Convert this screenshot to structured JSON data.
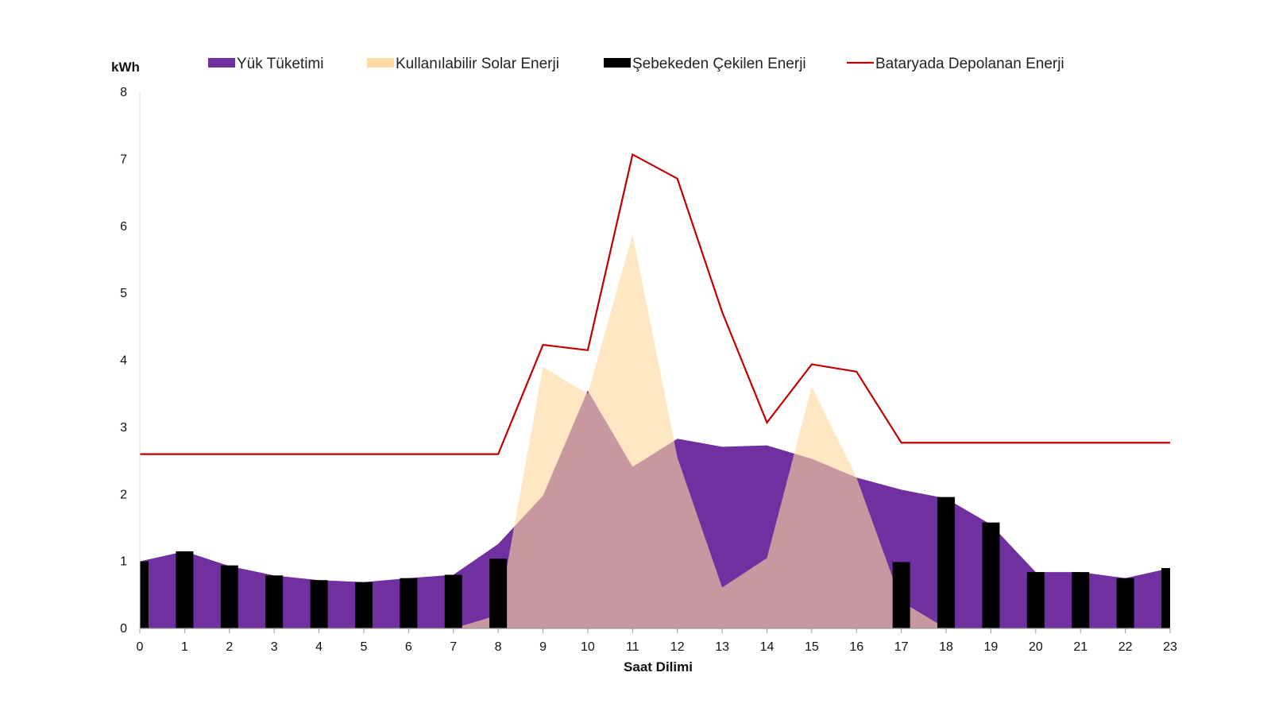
{
  "chart_data": {
    "type": "area",
    "ylabel": "kWh",
    "xlabel": "Saat Dilimi",
    "ylim": [
      0,
      8
    ],
    "yticks": [
      0,
      1,
      2,
      3,
      4,
      5,
      6,
      7,
      8
    ],
    "x": [
      0,
      1,
      2,
      3,
      4,
      5,
      6,
      7,
      8,
      9,
      10,
      11,
      12,
      13,
      14,
      15,
      16,
      17,
      18,
      19,
      20,
      21,
      22,
      23
    ],
    "legend_position": "top",
    "grid": false,
    "series": [
      {
        "name": "Yük Tüketimi",
        "type": "area",
        "color": "#7030a0",
        "values": [
          1.0,
          1.15,
          0.93,
          0.79,
          0.72,
          0.69,
          0.75,
          0.8,
          1.26,
          1.98,
          3.55,
          2.41,
          2.83,
          2.71,
          2.73,
          2.53,
          2.25,
          2.07,
          1.94,
          1.55,
          0.84,
          0.84,
          0.75,
          0.9
        ]
      },
      {
        "name": "Kullanılabilir Solar Enerji",
        "type": "area",
        "color": "#ffd8a0",
        "values": [
          0,
          0,
          0,
          0,
          0,
          0,
          0,
          0,
          0.2,
          3.9,
          3.5,
          5.88,
          2.55,
          0.61,
          1.05,
          3.61,
          2.25,
          0.4,
          0,
          0,
          0,
          0,
          0,
          0
        ]
      },
      {
        "name": "Şebekeden Çekilen Enerji",
        "type": "bar",
        "color": "#000000",
        "values": [
          1.0,
          1.15,
          0.94,
          0.79,
          0.72,
          0.69,
          0.75,
          0.8,
          1.04,
          0,
          0,
          0,
          0,
          0,
          0,
          0,
          0,
          0.99,
          1.96,
          1.58,
          0.84,
          0.84,
          0.75,
          0.9
        ]
      },
      {
        "name": "Bataryada Depolanan Enerji",
        "type": "line",
        "color": "#c00000",
        "values": [
          2.6,
          2.6,
          2.6,
          2.6,
          2.6,
          2.6,
          2.6,
          2.6,
          2.6,
          4.23,
          4.15,
          7.07,
          6.71,
          4.72,
          3.07,
          3.94,
          3.83,
          2.77,
          2.77,
          2.77,
          2.77,
          2.77,
          2.77,
          2.77
        ]
      }
    ]
  }
}
